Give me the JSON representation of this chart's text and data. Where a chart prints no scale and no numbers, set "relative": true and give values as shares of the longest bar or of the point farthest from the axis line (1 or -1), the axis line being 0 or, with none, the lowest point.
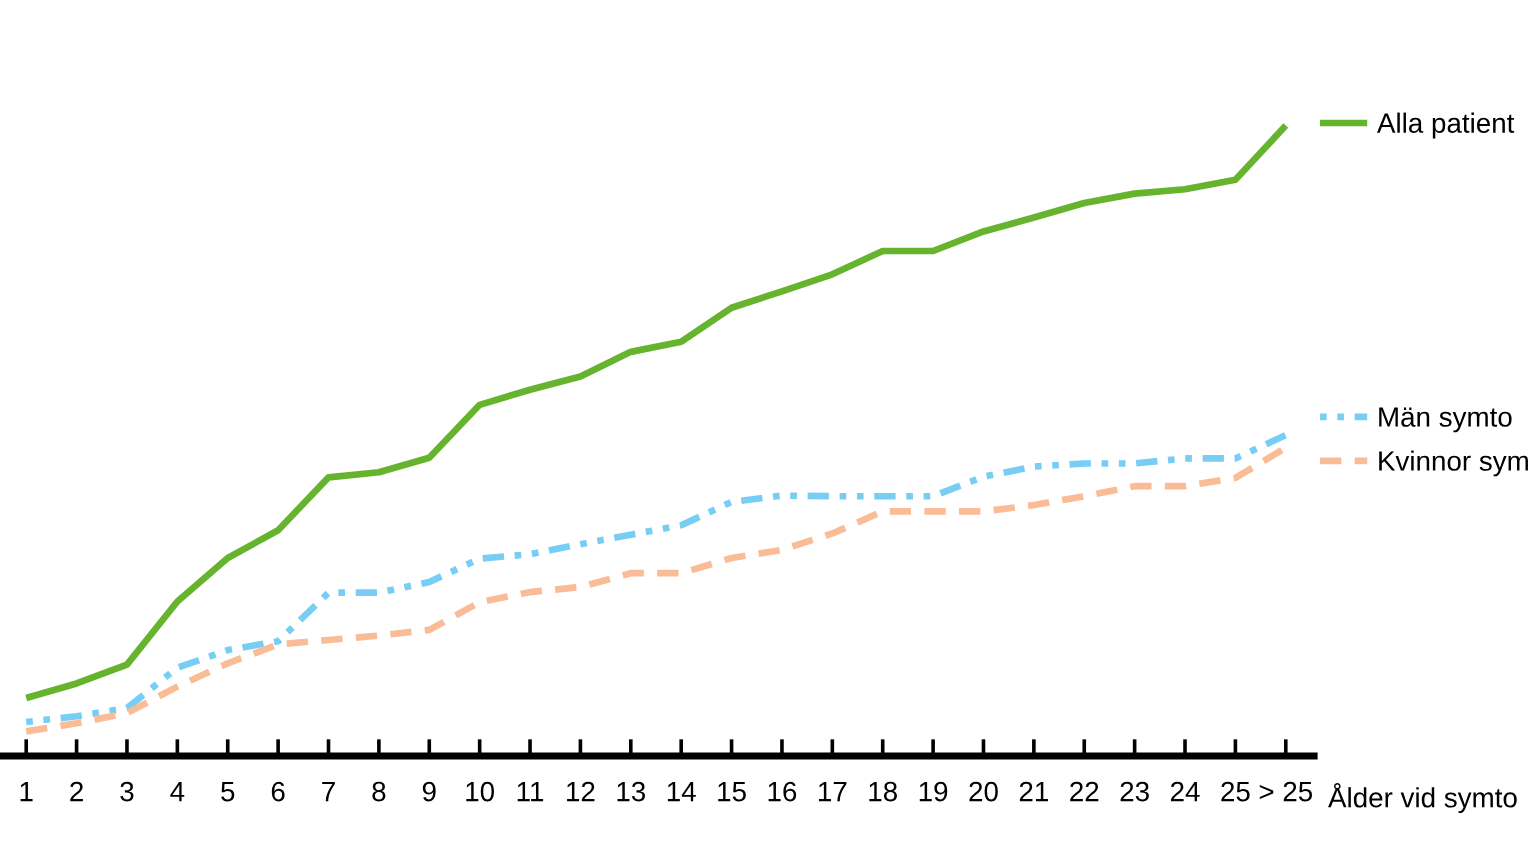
{
  "chart_data": {
    "type": "line",
    "relative": true,
    "xlabel": "Ålder vid symto",
    "tick_labels": "x",
    "legend": "right",
    "categories": [
      "1",
      "2",
      "3",
      "4",
      "5",
      "6",
      "7",
      "8",
      "9",
      "10",
      "11",
      "12",
      "13",
      "14",
      "15",
      "16",
      "17",
      "18",
      "19",
      "20",
      "21",
      "22",
      "23",
      "24",
      "25",
      "> 25"
    ],
    "series": [
      {
        "name": "Alla patient",
        "color": "#66b32e",
        "line_style": "solid",
        "values": [
          0.092,
          0.115,
          0.145,
          0.245,
          0.314,
          0.358,
          0.442,
          0.45,
          0.473,
          0.557,
          0.581,
          0.602,
          0.641,
          0.657,
          0.711,
          0.737,
          0.764,
          0.801,
          0.801,
          0.832,
          0.854,
          0.877,
          0.892,
          0.899,
          0.914,
          1.0
        ]
      },
      {
        "name": "Män symto",
        "color": "#78cdf5",
        "line_style": "dashdot",
        "values": [
          0.054,
          0.063,
          0.076,
          0.14,
          0.168,
          0.182,
          0.259,
          0.259,
          0.276,
          0.313,
          0.32,
          0.336,
          0.351,
          0.366,
          0.403,
          0.413,
          0.412,
          0.412,
          0.412,
          0.443,
          0.459,
          0.464,
          0.464,
          0.472,
          0.472,
          0.509
        ]
      },
      {
        "name": "Kvinnor sym",
        "color": "#f9bc96",
        "line_style": "dashed",
        "values": [
          0.039,
          0.052,
          0.068,
          0.11,
          0.147,
          0.177,
          0.184,
          0.191,
          0.2,
          0.244,
          0.26,
          0.268,
          0.29,
          0.29,
          0.314,
          0.327,
          0.353,
          0.388,
          0.388,
          0.388,
          0.398,
          0.412,
          0.428,
          0.428,
          0.441,
          0.489
        ]
      }
    ]
  }
}
